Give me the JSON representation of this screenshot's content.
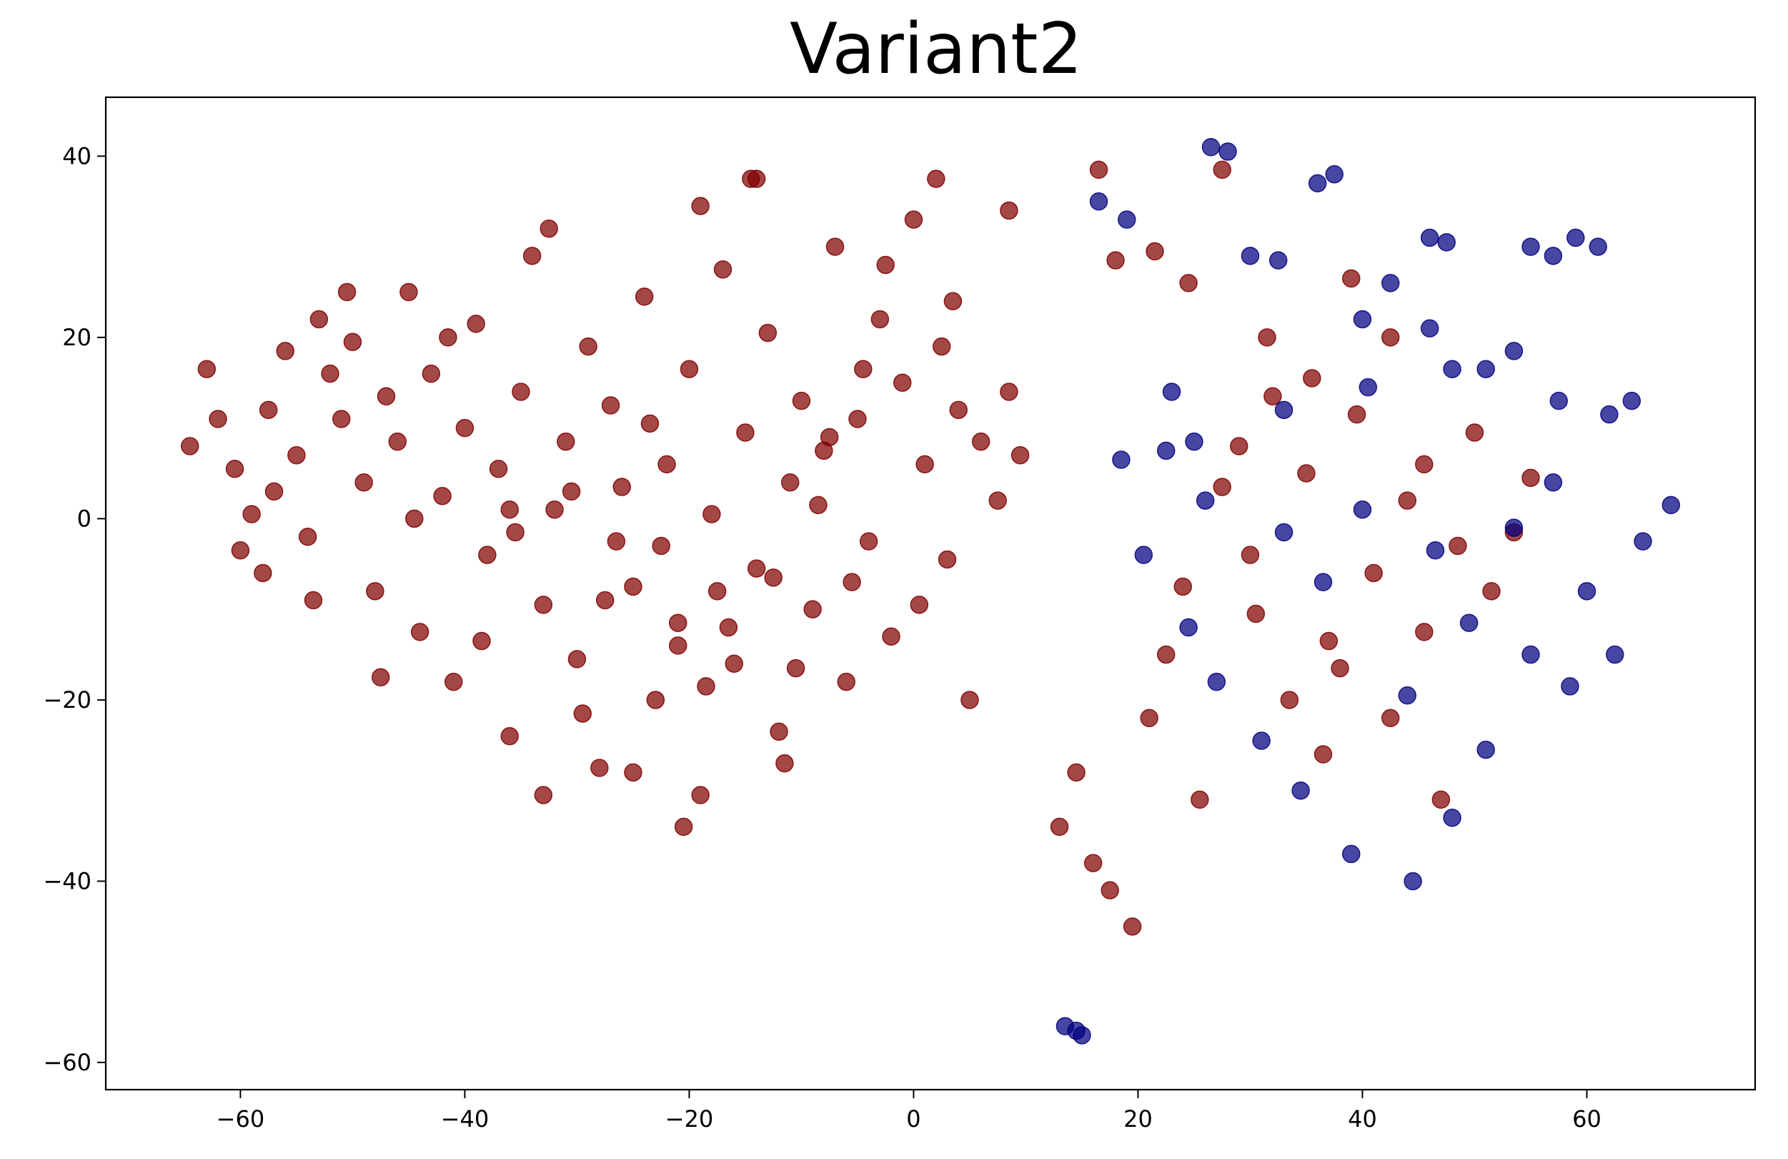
{
  "chart_data": {
    "type": "scatter",
    "title": "Variant2",
    "xlabel": "",
    "ylabel": "",
    "xlim": [
      -72,
      75
    ],
    "ylim": [
      -63,
      46.5
    ],
    "xticks": [
      -60,
      -40,
      -20,
      0,
      20,
      40,
      60
    ],
    "yticks": [
      -60,
      -40,
      -20,
      0,
      20,
      40
    ],
    "xtick_labels": [
      "−60",
      "−40",
      "−20",
      "0",
      "20",
      "40",
      "60"
    ],
    "ytick_labels": [
      "−60",
      "−40",
      "−20",
      "0",
      "20",
      "40"
    ],
    "grid": false,
    "legend": false,
    "colors": {
      "red": "#800000",
      "blue": "#000080",
      "frame": "#000000",
      "background": "#ffffff"
    },
    "series": [
      {
        "color": "#800000",
        "points": [
          [
            -64.5,
            8.0
          ],
          [
            -63.0,
            16.5
          ],
          [
            -62.0,
            11.0
          ],
          [
            -60.5,
            5.5
          ],
          [
            -59.0,
            0.5
          ],
          [
            -58.0,
            -6.0
          ],
          [
            -57.5,
            12.0
          ],
          [
            -56.0,
            18.5
          ],
          [
            -55.0,
            7.0
          ],
          [
            -54.0,
            -2.0
          ],
          [
            -53.0,
            22.0
          ],
          [
            -52.0,
            16.0
          ],
          [
            -51.0,
            11.0
          ],
          [
            -50.0,
            19.5
          ],
          [
            -49.0,
            4.0
          ],
          [
            -48.0,
            -8.0
          ],
          [
            -47.0,
            13.5
          ],
          [
            -46.0,
            8.5
          ],
          [
            -45.0,
            25.0
          ],
          [
            -44.0,
            -12.5
          ],
          [
            -43.0,
            16.0
          ],
          [
            -42.0,
            2.5
          ],
          [
            -41.0,
            -18.0
          ],
          [
            -40.0,
            10.0
          ],
          [
            -39.0,
            21.5
          ],
          [
            -38.0,
            -4.0
          ],
          [
            -37.0,
            5.5
          ],
          [
            -36.0,
            -24.0
          ],
          [
            -35.0,
            14.0
          ],
          [
            -34.0,
            29.0
          ],
          [
            -33.0,
            -9.5
          ],
          [
            -32.0,
            1.0
          ],
          [
            -31.0,
            8.5
          ],
          [
            -30.0,
            -15.5
          ],
          [
            -29.0,
            19.0
          ],
          [
            -28.0,
            -27.5
          ],
          [
            -27.0,
            12.5
          ],
          [
            -26.0,
            3.5
          ],
          [
            -25.0,
            -7.5
          ],
          [
            -24.0,
            24.5
          ],
          [
            -23.0,
            -20.0
          ],
          [
            -22.0,
            6.0
          ],
          [
            -21.0,
            -11.5
          ],
          [
            -20.0,
            16.5
          ],
          [
            -19.0,
            -30.5
          ],
          [
            -18.0,
            0.5
          ],
          [
            -17.0,
            27.5
          ],
          [
            -16.0,
            -16.0
          ],
          [
            -15.0,
            9.5
          ],
          [
            -14.0,
            -5.5
          ],
          [
            -13.0,
            20.5
          ],
          [
            -12.0,
            -23.5
          ],
          [
            -11.0,
            4.0
          ],
          [
            -10.0,
            13.0
          ],
          [
            -9.0,
            -10.0
          ],
          [
            -8.0,
            7.5
          ],
          [
            -7.0,
            30.0
          ],
          [
            -6.0,
            -18.0
          ],
          [
            -5.0,
            11.0
          ],
          [
            -4.0,
            -2.5
          ],
          [
            -3.0,
            22.0
          ],
          [
            -2.0,
            -13.0
          ],
          [
            -1.0,
            15.0
          ],
          [
            0.0,
            33.0
          ],
          [
            1.0,
            6.0
          ],
          [
            2.0,
            37.5
          ],
          [
            3.0,
            -4.5
          ],
          [
            4.0,
            12.0
          ],
          [
            5.0,
            -20.0
          ],
          [
            6.0,
            8.5
          ],
          [
            7.5,
            2.0
          ],
          [
            8.5,
            14.0
          ],
          [
            9.5,
            7.0
          ],
          [
            -60.0,
            -3.5
          ],
          [
            -57.0,
            3.0
          ],
          [
            -53.5,
            -9.0
          ],
          [
            -50.5,
            25.0
          ],
          [
            -47.5,
            -17.5
          ],
          [
            -44.5,
            0.0
          ],
          [
            -41.5,
            20.0
          ],
          [
            -38.5,
            -13.5
          ],
          [
            -35.5,
            -1.5
          ],
          [
            -32.5,
            32.0
          ],
          [
            -29.5,
            -21.5
          ],
          [
            -26.5,
            -2.5
          ],
          [
            -23.5,
            10.5
          ],
          [
            -20.5,
            -34.0
          ],
          [
            -17.5,
            -8.0
          ],
          [
            -14.5,
            37.5
          ],
          [
            -11.5,
            -27.0
          ],
          [
            -8.5,
            1.5
          ],
          [
            -5.5,
            -7.0
          ],
          [
            -2.5,
            28.0
          ],
          [
            0.5,
            -9.5
          ],
          [
            2.5,
            19.0
          ],
          [
            -14.0,
            37.5
          ],
          [
            -19.0,
            34.5
          ],
          [
            8.5,
            34.0
          ],
          [
            -33.0,
            -30.5
          ],
          [
            -25.0,
            -28.0
          ],
          [
            -21.0,
            -14.0
          ],
          [
            -16.5,
            -12.0
          ],
          [
            -12.5,
            -6.5
          ],
          [
            -27.5,
            -9.0
          ],
          [
            -36.0,
            1.0
          ],
          [
            -30.5,
            3.0
          ],
          [
            -22.5,
            -3.0
          ],
          [
            -18.5,
            -18.5
          ],
          [
            -10.5,
            -16.5
          ],
          [
            -7.5,
            9.0
          ],
          [
            -4.5,
            16.5
          ],
          [
            3.5,
            24.0
          ]
        ]
      },
      {
        "color": "#800000",
        "points": [
          [
            13.0,
            -34.0
          ],
          [
            14.5,
            -28.0
          ],
          [
            16.0,
            -38.0
          ],
          [
            17.5,
            -41.0
          ],
          [
            19.5,
            -45.0
          ],
          [
            21.0,
            -22.0
          ],
          [
            22.5,
            -15.0
          ],
          [
            24.0,
            -7.5
          ],
          [
            25.5,
            -31.0
          ],
          [
            27.5,
            3.5
          ],
          [
            29.0,
            8.0
          ],
          [
            30.5,
            -10.5
          ],
          [
            32.0,
            13.5
          ],
          [
            33.5,
            -20.0
          ],
          [
            35.0,
            5.0
          ],
          [
            36.5,
            -26.0
          ],
          [
            38.0,
            -16.5
          ],
          [
            39.5,
            11.5
          ],
          [
            41.0,
            -6.0
          ],
          [
            42.5,
            -22.0
          ],
          [
            44.0,
            2.0
          ],
          [
            45.5,
            -12.5
          ],
          [
            47.0,
            -31.0
          ],
          [
            48.5,
            -3.0
          ],
          [
            50.0,
            9.5
          ],
          [
            51.5,
            -8.0
          ],
          [
            53.5,
            -1.5
          ],
          [
            55.0,
            4.5
          ],
          [
            18.0,
            28.5
          ],
          [
            21.5,
            29.5
          ],
          [
            24.5,
            26.0
          ],
          [
            27.5,
            38.5
          ],
          [
            16.5,
            38.5
          ],
          [
            39.0,
            26.5
          ],
          [
            42.5,
            20.0
          ],
          [
            31.5,
            20.0
          ],
          [
            35.5,
            15.5
          ],
          [
            45.5,
            6.0
          ],
          [
            30.0,
            -4.0
          ],
          [
            37.0,
            -13.5
          ]
        ]
      },
      {
        "color": "#000080",
        "points": [
          [
            14.5,
            -56.5
          ],
          [
            15.0,
            -57.0
          ],
          [
            13.5,
            -56.0
          ],
          [
            26.5,
            41.0
          ],
          [
            28.0,
            40.5
          ],
          [
            36.0,
            37.0
          ],
          [
            37.5,
            38.0
          ],
          [
            46.0,
            31.0
          ],
          [
            47.5,
            30.5
          ],
          [
            55.0,
            30.0
          ],
          [
            57.0,
            29.0
          ],
          [
            59.0,
            31.0
          ],
          [
            61.0,
            30.0
          ],
          [
            53.5,
            18.5
          ],
          [
            51.0,
            16.5
          ],
          [
            42.5,
            26.0
          ],
          [
            40.0,
            22.0
          ],
          [
            32.5,
            28.5
          ],
          [
            30.0,
            29.0
          ],
          [
            23.0,
            14.0
          ],
          [
            25.0,
            8.5
          ],
          [
            22.5,
            7.5
          ],
          [
            26.0,
            2.0
          ],
          [
            33.0,
            12.0
          ],
          [
            40.5,
            14.5
          ],
          [
            46.0,
            21.0
          ],
          [
            48.0,
            16.5
          ],
          [
            57.5,
            13.0
          ],
          [
            62.0,
            11.5
          ],
          [
            64.0,
            13.0
          ],
          [
            67.5,
            1.5
          ],
          [
            65.0,
            -2.5
          ],
          [
            60.0,
            -8.0
          ],
          [
            62.5,
            -15.0
          ],
          [
            58.5,
            -18.5
          ],
          [
            51.0,
            -25.5
          ],
          [
            48.0,
            -33.0
          ],
          [
            44.5,
            -40.0
          ],
          [
            39.0,
            -37.0
          ],
          [
            34.5,
            -30.0
          ],
          [
            31.0,
            -24.5
          ],
          [
            27.0,
            -18.0
          ],
          [
            24.5,
            -12.0
          ],
          [
            20.5,
            -4.0
          ],
          [
            18.5,
            6.5
          ],
          [
            16.5,
            35.0
          ],
          [
            19.0,
            33.0
          ],
          [
            53.5,
            -1.0
          ],
          [
            57.0,
            4.0
          ],
          [
            49.5,
            -11.5
          ],
          [
            44.0,
            -19.5
          ],
          [
            36.5,
            -7.0
          ],
          [
            33.0,
            -1.5
          ],
          [
            40.0,
            1.0
          ],
          [
            46.5,
            -3.5
          ],
          [
            55.0,
            -15.0
          ]
        ]
      }
    ]
  }
}
